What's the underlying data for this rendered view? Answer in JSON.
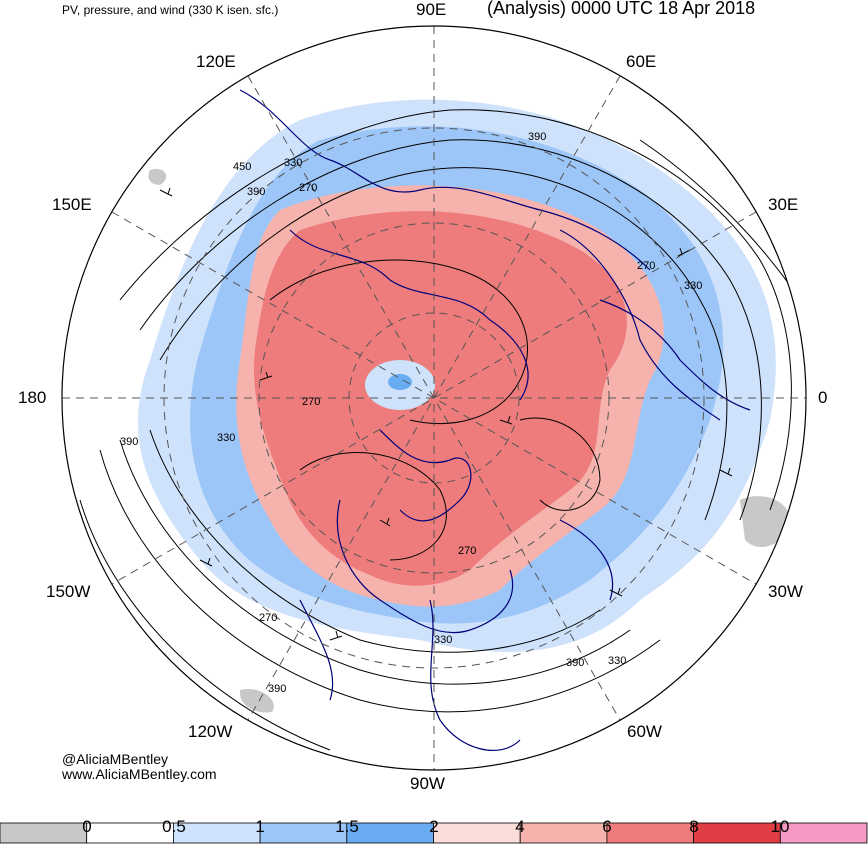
{
  "header": {
    "product_title": "PV, pressure, and wind (330 K isen. sfc.)",
    "valid_title": "(Analysis) 0000 UTC 18 Apr 2018"
  },
  "longitude_labels": {
    "lon_90e": "90E",
    "lon_60e": "60E",
    "lon_120e": "120E",
    "lon_150e": "150E",
    "lon_30e": "30E",
    "lon_180": "180",
    "lon_0": "0",
    "lon_150w": "150W",
    "lon_30w": "30W",
    "lon_120w": "120W",
    "lon_60w": "60W",
    "lon_90w": "90W"
  },
  "contour_labels": [
    "390",
    "330",
    "450",
    "390",
    "270",
    "270",
    "330",
    "270",
    "390",
    "330",
    "270",
    "270",
    "330",
    "390",
    "330",
    "390"
  ],
  "credits": {
    "handle": "@AliciaMBentley",
    "website": "www.AliciaMBentley.com"
  },
  "colorbar": {
    "colors": [
      "#c8c8c8",
      "#ffffff",
      "#cfe2fb",
      "#9dc6f8",
      "#6aacf2",
      "#fadcd8",
      "#f6b3ad",
      "#ee7c7c",
      "#e03e45",
      "#f59ac4"
    ],
    "tick_labels": [
      "0",
      "0.5",
      "1",
      "1.5",
      "2",
      "4",
      "6",
      "8",
      "10"
    ]
  },
  "map_colors": {
    "coastline": "#00007a",
    "pv_high": "#ee7c7c",
    "pv_mid": "#f6b3ad",
    "pv_blue": "#9dc6f8",
    "pv_light_blue": "#cfe2fb",
    "terrain_gray": "#c8c8c8",
    "contour": "#000000",
    "grid": "#555555"
  }
}
